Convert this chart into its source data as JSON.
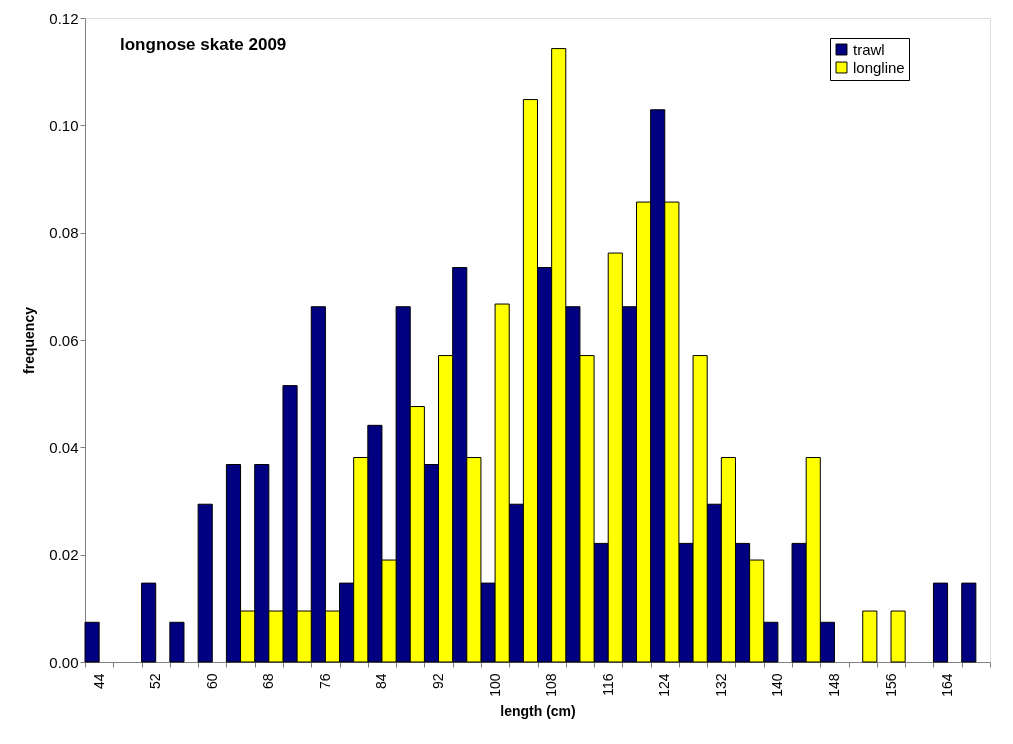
{
  "chart_data": {
    "type": "bar",
    "title": "longnose skate 2009",
    "xlabel": "length (cm)",
    "ylabel": "frequency",
    "categories": [
      "44",
      null,
      "52",
      null,
      "60",
      null,
      "68",
      null,
      "76",
      null,
      "84",
      null,
      "92",
      null,
      "100",
      null,
      "108",
      null,
      "116",
      null,
      "124",
      null,
      "132",
      null,
      "140",
      null,
      "148",
      null,
      "156",
      null,
      "164",
      null
    ],
    "series": [
      {
        "name": "trawl",
        "color": "#000080",
        "values": [
          0.0074,
          null,
          0.0147,
          0.0074,
          0.0294,
          0.0368,
          0.0368,
          0.0515,
          0.0662,
          0.0147,
          0.0441,
          0.0662,
          0.0368,
          0.0735,
          0.0147,
          0.0294,
          0.0735,
          0.0662,
          0.0221,
          0.0662,
          0.1029,
          0.0221,
          0.0294,
          0.0221,
          0.0074,
          0.0221,
          0.0074,
          null,
          null,
          null,
          0.0147,
          0.0147
        ]
      },
      {
        "name": "longline",
        "color": "#ffff00",
        "values": [
          null,
          null,
          null,
          null,
          null,
          0.0095,
          0.0095,
          0.0095,
          0.0095,
          0.0381,
          0.019,
          0.0476,
          0.0571,
          0.0381,
          0.0667,
          0.1048,
          0.1143,
          0.0571,
          0.0762,
          0.0857,
          0.0857,
          0.0571,
          0.0381,
          0.019,
          null,
          0.0381,
          null,
          0.0095,
          0.0095,
          null,
          null,
          null
        ]
      }
    ],
    "ylim": [
      0,
      0.12
    ],
    "yticks": [
      {
        "value": 0,
        "label": "0.00"
      },
      {
        "value": 0.02,
        "label": "0.02"
      },
      {
        "value": 0.04,
        "label": "0.04"
      },
      {
        "value": 0.06,
        "label": "0.06"
      },
      {
        "value": 0.08,
        "label": "0.08"
      },
      {
        "value": 0.1,
        "label": "0.10"
      },
      {
        "value": 0.12,
        "label": "0.12"
      }
    ],
    "grid": false,
    "legend": "top right"
  }
}
